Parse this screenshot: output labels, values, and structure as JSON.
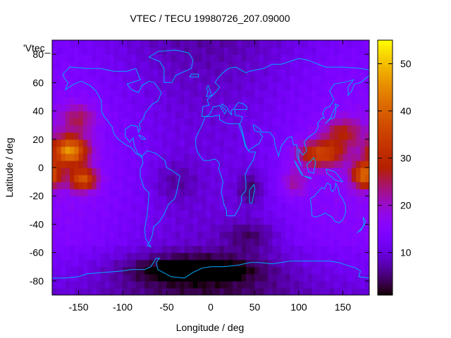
{
  "chart_data": {
    "type": "heatmap",
    "title": "VTEC / TECU 19980726_207.09000",
    "xlabel": "Longitude / deg",
    "ylabel": "Latitude / deg",
    "key_label": "'Vtec_",
    "xlim": [
      -180,
      180
    ],
    "ylim": [
      -90,
      90
    ],
    "xticks": [
      -150,
      -100,
      -50,
      0,
      50,
      100,
      150
    ],
    "yticks": [
      -80,
      -60,
      -40,
      -20,
      0,
      20,
      40,
      60,
      80
    ],
    "zlim": [
      1,
      55
    ],
    "colorbar_ticks": [
      10,
      20,
      30,
      40,
      50
    ],
    "colormap": "gnuplot rgbformulae 7,5,15 (black-blue-purple-red-orange-yellow)",
    "grid": false,
    "overlay": "coastlines (cyan)",
    "grid_resolution_deg": [
      5,
      5
    ],
    "enhancement_centers": [
      {
        "region": "central Pacific",
        "lon": -160,
        "lat": 12,
        "vtec": 50
      },
      {
        "region": "Pacific date line",
        "lon": 175,
        "lat": -5,
        "vtec": 48
      },
      {
        "region": "South/East Asia",
        "lon": 120,
        "lat": 10,
        "vtec": 40
      }
    ],
    "depletion_centers": [
      {
        "region": "Southern Ocean",
        "lon": -20,
        "lat": -70,
        "vtec": 3
      },
      {
        "region": "southern Africa",
        "lon": 45,
        "lat": -15,
        "vtec": 6
      }
    ]
  }
}
